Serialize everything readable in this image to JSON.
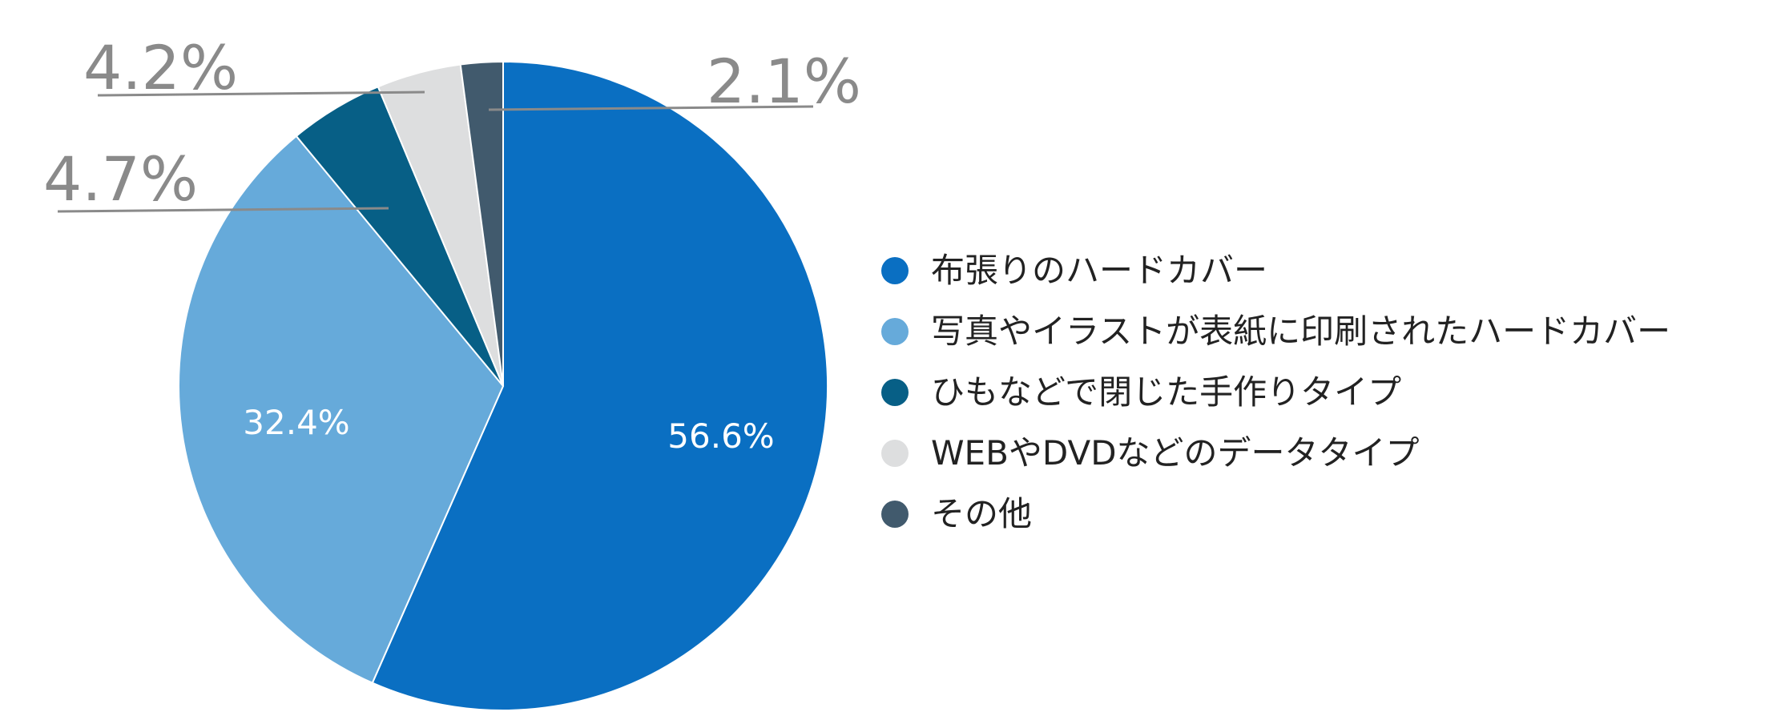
{
  "chart_data": {
    "type": "pie",
    "categories": [
      "布張りのハードカバー",
      "写真やイラストが表紙に印刷されたハードカバー",
      "ひもなどで閉じた手作りタイプ",
      "WEBやDVDなどのデータタイプ",
      "その他"
    ],
    "values": [
      56.6,
      32.4,
      4.7,
      4.2,
      2.1
    ],
    "value_labels": [
      "56.6%",
      "32.4%",
      "4.7%",
      "4.2%",
      "2.1%"
    ],
    "colors": [
      "#0A6FC2",
      "#66AADA",
      "#075F86",
      "#DDDEDF",
      "#415A6D"
    ],
    "label_colors": [
      "#FFFFFF",
      "#FFFFFF",
      "#8A8A8A",
      "#8A8A8A",
      "#8A8A8A"
    ],
    "legend_position": "right",
    "start_angle": "top",
    "direction": "clockwise"
  }
}
